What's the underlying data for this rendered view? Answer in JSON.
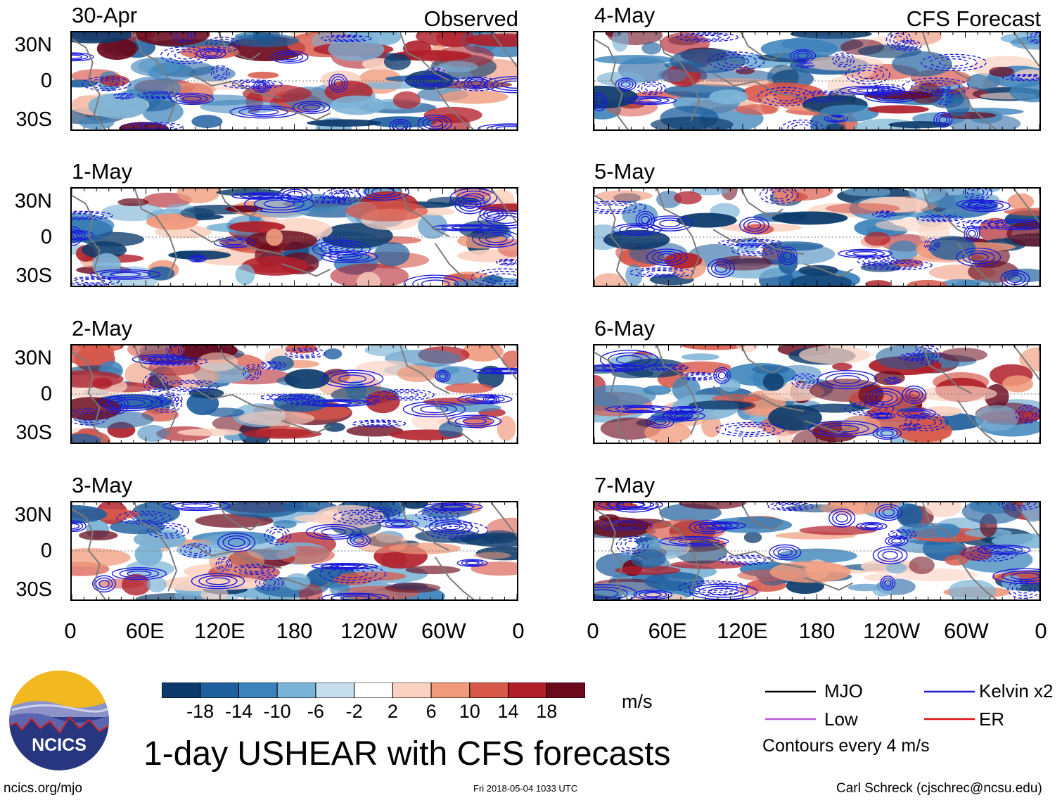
{
  "panels": [
    {
      "date": "30-Apr",
      "tag": "Observed"
    },
    {
      "date": "1-May",
      "tag": ""
    },
    {
      "date": "2-May",
      "tag": ""
    },
    {
      "date": "3-May",
      "tag": ""
    },
    {
      "date": "4-May",
      "tag": "CFS Forecast"
    },
    {
      "date": "5-May",
      "tag": ""
    },
    {
      "date": "6-May",
      "tag": ""
    },
    {
      "date": "7-May",
      "tag": ""
    }
  ],
  "lat_labels": [
    "30N",
    "0",
    "30S"
  ],
  "lon_labels": [
    "0",
    "60E",
    "120E",
    "180",
    "120W",
    "60W",
    "0"
  ],
  "colorbar": {
    "unit": "m/s",
    "tick_labels": [
      "-18",
      "-14",
      "-10",
      "-6",
      "-2",
      "2",
      "6",
      "10",
      "14",
      "18"
    ],
    "colors": [
      "#0b3a6b",
      "#1f5f9e",
      "#3c83bb",
      "#7bb3d6",
      "#c6deee",
      "#ffffff",
      "#fbd2c1",
      "#f09a7c",
      "#d8584a",
      "#b01f2a",
      "#6b0a1d"
    ]
  },
  "legend": {
    "items": [
      {
        "label": "MJO",
        "color": "#000000"
      },
      {
        "label": "Kelvin x2",
        "color": "#1a1adb"
      },
      {
        "label": "Low",
        "color": "#b35ad6"
      },
      {
        "label": "ER",
        "color": "#e01010"
      }
    ],
    "note": "Contours every 4 m/s"
  },
  "logo_text": "NCICS",
  "title": "1-day USHEAR with CFS forecasts",
  "footer": {
    "left": "ncics.org/mjo",
    "center": "Fri 2018-05-04 1033 UTC",
    "right": "Carl Schreck (cjschrec@ncsu.edu)"
  }
}
